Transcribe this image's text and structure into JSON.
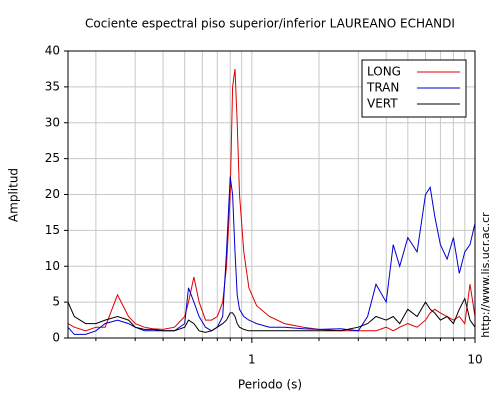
{
  "chart_data": {
    "type": "line",
    "title": "Cociente espectral piso superior/inferior LAUREANO ECHANDI",
    "xlabel": "Periodo (s)",
    "ylabel": "Amplitud",
    "side_text": "http://www.lis.ucr.ac.cr",
    "xscale": "log",
    "grid": true,
    "legend": "upper right",
    "xlim": [
      0.15,
      10
    ],
    "xticks": [
      1,
      10
    ],
    "xminorticks": [
      0.2,
      0.3,
      0.4,
      0.5,
      0.6,
      0.7,
      0.8,
      0.9,
      2,
      3,
      4,
      5,
      6,
      7,
      8,
      9
    ],
    "ylim": [
      0,
      40
    ],
    "yticks": [
      0,
      5,
      10,
      15,
      20,
      25,
      30,
      35,
      40
    ],
    "x": [
      0.15,
      0.16,
      0.18,
      0.2,
      0.22,
      0.25,
      0.28,
      0.3,
      0.33,
      0.36,
      0.4,
      0.45,
      0.5,
      0.52,
      0.55,
      0.58,
      0.62,
      0.66,
      0.7,
      0.74,
      0.77,
      0.8,
      0.82,
      0.84,
      0.86,
      0.88,
      0.92,
      0.97,
      1.05,
      1.2,
      1.4,
      1.7,
      2,
      2.5,
      3,
      3.3,
      3.6,
      4,
      4.3,
      4.6,
      5,
      5.5,
      6,
      6.3,
      6.6,
      7,
      7.5,
      8,
      8.5,
      9,
      9.5,
      10
    ],
    "series": [
      {
        "name": "LONG",
        "color": "#e00000",
        "values": [
          2,
          1.5,
          1,
          1.5,
          1.5,
          6,
          3,
          2,
          1.5,
          1.3,
          1.2,
          1.5,
          3,
          5,
          8.5,
          5,
          2.5,
          2.5,
          3,
          5,
          10,
          20,
          35,
          37.5,
          30,
          20,
          12,
          7,
          4.5,
          3,
          2,
          1.5,
          1.2,
          1,
          1,
          1,
          1,
          1.5,
          1,
          1.5,
          2,
          1.5,
          2.5,
          3.5,
          4,
          3.5,
          3,
          2.5,
          3,
          2,
          7.5,
          3
        ]
      },
      {
        "name": "TRAN",
        "color": "#0000d0",
        "values": [
          1.5,
          0.5,
          0.5,
          1,
          2,
          2.5,
          2,
          1.5,
          1,
          1,
          1,
          1,
          2,
          7,
          5,
          3,
          1.5,
          1,
          1.5,
          3,
          12,
          22.5,
          20,
          12,
          6,
          4,
          3,
          2.5,
          2,
          1.5,
          1.5,
          1.3,
          1.2,
          1.3,
          1,
          3,
          7.5,
          5,
          13,
          10,
          14,
          12,
          20,
          21,
          17,
          13,
          11,
          14,
          9,
          12,
          13,
          16
        ]
      },
      {
        "name": "VERT",
        "color": "#000000",
        "values": [
          5,
          3,
          2,
          2,
          2.5,
          3,
          2.5,
          1.5,
          1.2,
          1.2,
          1,
          1,
          1.5,
          2.5,
          2,
          1,
          0.8,
          1,
          1.5,
          2,
          2.5,
          3.5,
          3.5,
          3,
          2,
          1.5,
          1.2,
          1,
          1,
          1,
          1,
          1,
          1,
          1,
          1.5,
          2,
          3,
          2.5,
          3,
          2,
          4,
          3,
          5,
          4,
          3.5,
          2.5,
          3,
          2,
          4,
          5.5,
          2.5,
          1.5
        ]
      }
    ]
  }
}
